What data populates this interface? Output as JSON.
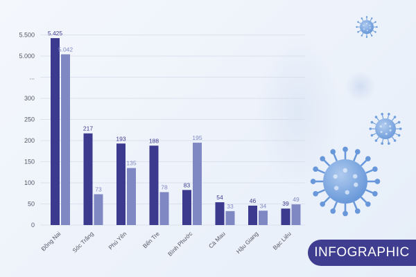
{
  "colors": {
    "series_2025": "#3b3a8f",
    "series_2024": "#8088c4",
    "axis_text": "#555566",
    "grid": "#d4dbe8",
    "badge": "#3f3d8f",
    "virus": "#5b8fd6"
  },
  "badge": {
    "label": "INFOGRAPHIC"
  },
  "icons": [
    "virus-icon",
    "virus-icon",
    "virus-icon"
  ],
  "chart_data": {
    "type": "bar",
    "title": "",
    "xlabel": "",
    "ylabel": "",
    "grid": true,
    "legend": "none",
    "categories": [
      "Đồng Nai",
      "Sóc Trăng",
      "Phú Yên",
      "Bến Tre",
      "Bình Phước",
      "Cà Mau",
      "Hậu Giang",
      "Bạc Liêu"
    ],
    "series": [
      {
        "color": "#3b3a8f",
        "values": [
          5425,
          217,
          193,
          188,
          83,
          54,
          46,
          39
        ],
        "labels": [
          "5.425",
          "217",
          "193",
          "188",
          "83",
          "54",
          "46",
          "39"
        ]
      },
      {
        "color": "#8088c4",
        "values": [
          5042,
          73,
          135,
          78,
          195,
          33,
          34,
          49
        ],
        "labels": [
          "5.042",
          "73",
          "135",
          "78",
          "195",
          "33",
          "34",
          "49"
        ]
      }
    ],
    "y_axis": {
      "broken": true,
      "ticks": [
        "0",
        "50",
        "100",
        "150",
        "200",
        "250",
        "300",
        "...",
        "5.000",
        "5.500"
      ],
      "lower_range": [
        0,
        300
      ],
      "upper_values": [
        5000,
        5500
      ]
    }
  }
}
